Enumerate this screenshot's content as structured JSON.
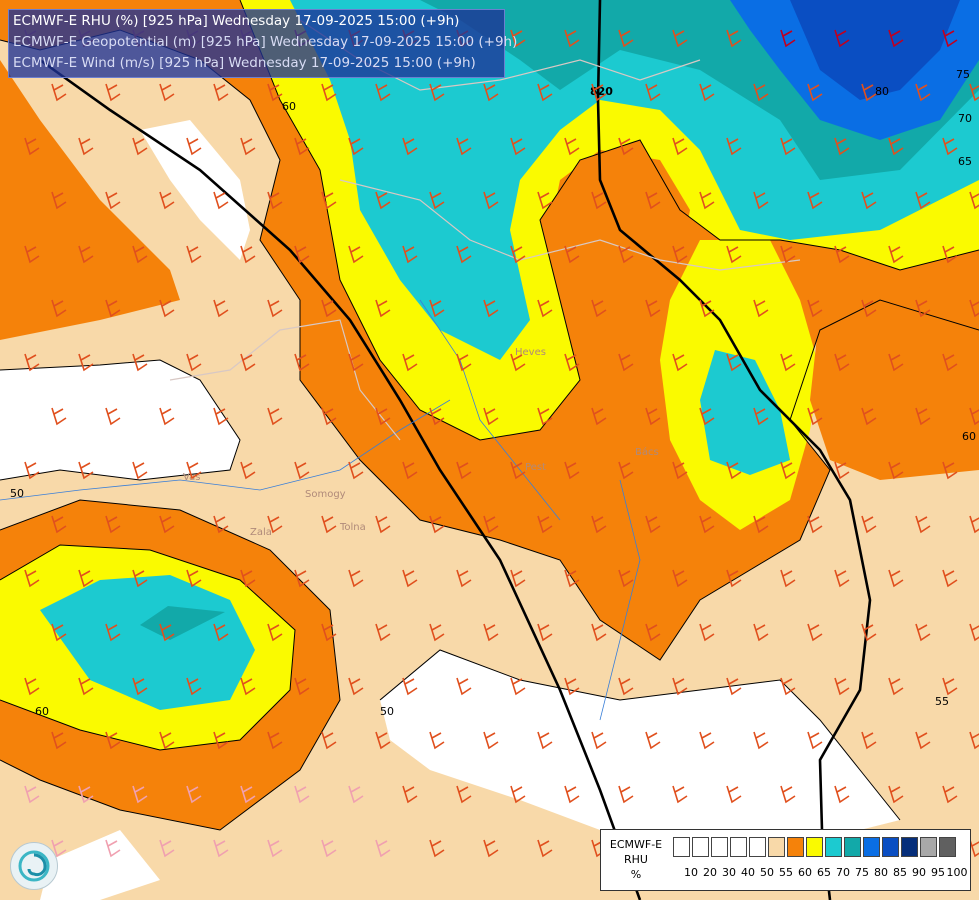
{
  "title": {
    "lines": [
      "ECMWF-E RHU (%) [925 hPa] Wednesday 17-09-2025 15:00 (+9h)",
      "ECMWF-E Geopotential (m) [925 hPa] Wednesday 17-09-2025 15:00 (+9h)",
      "ECMWF-E Wind (m/s) [925 hPa] Wednesday 17-09-2025 15:00 (+9h)"
    ]
  },
  "legend": {
    "label_lines": [
      "ECMWF-E",
      "RHU",
      "%"
    ],
    "ticks": [
      "10",
      "20",
      "30",
      "40",
      "50",
      "55",
      "60",
      "65",
      "70",
      "75",
      "80",
      "85",
      "90",
      "95",
      "100"
    ],
    "colors": [
      "#ffffff",
      "#ffffff",
      "#ffffff",
      "#ffffff",
      "#ffffff",
      "#f8d9a9",
      "#f5820a",
      "#fafa00",
      "#1ccad0",
      "#12a9a9",
      "#0a6ee4",
      "#0a4ec2",
      "#062e7a",
      "#a8a8a8",
      "#606060"
    ]
  },
  "colors": {
    "rhu_50_55": "#f8d9a9",
    "rhu_55_60": "#f5820a",
    "rhu_60_65": "#fafa00",
    "rhu_65_70": "#1ccad0",
    "rhu_70_75": "#12a9a9",
    "rhu_75_80": "#0a6ee4",
    "rhu_80_85": "#0a4ec2",
    "below_50": "#ffffff"
  },
  "contour_labels": [
    "60",
    "50",
    "60",
    "50",
    "60",
    "65",
    "70",
    "75",
    "80",
    "60",
    "55",
    "820"
  ],
  "place_labels": [
    "Vas",
    "Zala",
    "Somogy",
    "Tolna",
    "Heves",
    "Pest",
    "Bács"
  ],
  "logo": {
    "icon": "ecmwf-swirl-logo"
  }
}
